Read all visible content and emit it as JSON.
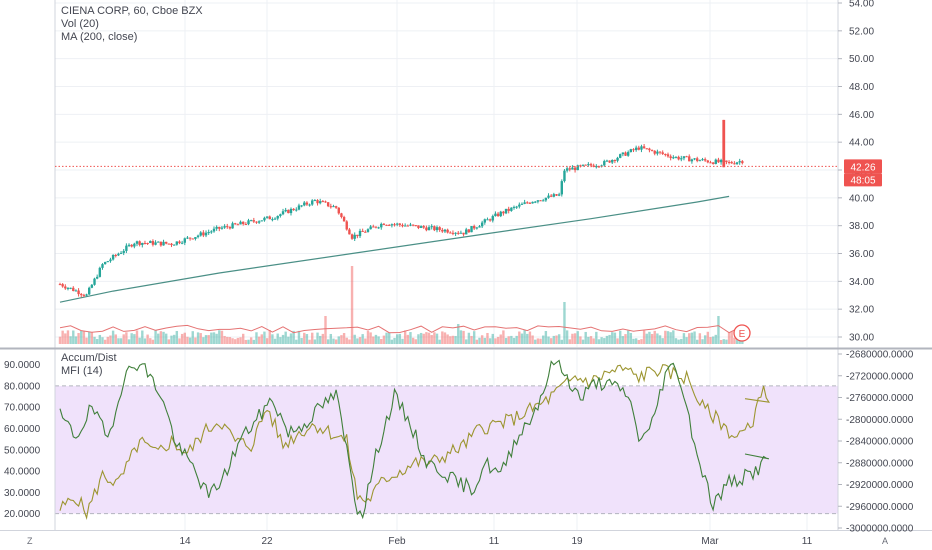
{
  "header": {
    "symbol_line": "CIENA CORP, 60, Cboe BZX",
    "vol_label": "Vol (20)",
    "ma_label": "MA (200, close)"
  },
  "lower_pane": {
    "accum_label": "Accum/Dist",
    "mfi_label": "MFI (14)"
  },
  "corners": {
    "left": "Z",
    "right": "A"
  },
  "earnings_badge": "E",
  "colors": {
    "up": "#26a69a",
    "down": "#ef5350",
    "ma": "#4a8f86",
    "ad_line": "#3f7f3a",
    "mfi_line": "#9c9530",
    "mfi_band": "#f0e2fb",
    "price_line": "#ef5350",
    "vol_ma": "#e57373"
  },
  "chart_data": [
    {
      "type": "candlestick",
      "title": "CIENA CORP, 60, Cboe BZX",
      "ylim": [
        29.5,
        54.0
      ],
      "y_ticks": [
        "30.00",
        "32.00",
        "34.00",
        "36.00",
        "38.00",
        "40.00",
        "42.00",
        "44.00",
        "46.00",
        "48.00",
        "50.00",
        "52.00",
        "54.00"
      ],
      "x_ticks": [
        "14",
        "22",
        "Feb",
        "11",
        "19",
        "Mar",
        "11"
      ],
      "price_path_anchors": [
        {
          "i": 0,
          "v": 33.8
        },
        {
          "i": 10,
          "v": 33.0
        },
        {
          "i": 16,
          "v": 35.2
        },
        {
          "i": 28,
          "v": 36.8
        },
        {
          "i": 42,
          "v": 36.7
        },
        {
          "i": 60,
          "v": 37.8
        },
        {
          "i": 80,
          "v": 38.6
        },
        {
          "i": 96,
          "v": 39.8
        },
        {
          "i": 104,
          "v": 39.3
        },
        {
          "i": 110,
          "v": 37.2
        },
        {
          "i": 122,
          "v": 38.2
        },
        {
          "i": 140,
          "v": 37.8
        },
        {
          "i": 152,
          "v": 37.5
        },
        {
          "i": 166,
          "v": 38.9
        },
        {
          "i": 178,
          "v": 39.8
        },
        {
          "i": 188,
          "v": 40.2
        },
        {
          "i": 190,
          "v": 42.0
        },
        {
          "i": 205,
          "v": 42.5
        },
        {
          "i": 218,
          "v": 43.6
        },
        {
          "i": 232,
          "v": 42.9
        },
        {
          "i": 246,
          "v": 42.6
        },
        {
          "i": 252,
          "v": 42.5
        },
        {
          "i": 258,
          "v": 42.7
        }
      ],
      "last_price": {
        "label": "42.26",
        "countdown": "48:05",
        "value": 42.26
      },
      "ma200": [
        [
          0,
          32.5
        ],
        [
          20,
          33.3
        ],
        [
          60,
          34.6
        ],
        [
          110,
          36.0
        ],
        [
          160,
          37.4
        ],
        [
          200,
          38.5
        ],
        [
          240,
          39.7
        ],
        [
          252,
          40.1
        ]
      ],
      "spike": {
        "i": 250,
        "high": 45.6,
        "low": 42.2
      },
      "volume_spikes": [
        {
          "i": 110,
          "h": 78
        },
        {
          "i": 190,
          "h": 42
        },
        {
          "i": 100,
          "h": 28
        },
        {
          "i": 248,
          "h": 28
        },
        {
          "i": 150,
          "h": 20
        }
      ],
      "bar_count": 258,
      "earnings_marker": "E"
    },
    {
      "type": "line",
      "series": [
        {
          "name": "Accum/Dist",
          "anchors": [
            [
              0,
              66
            ],
            [
              6,
              56
            ],
            [
              12,
              70
            ],
            [
              18,
              55
            ],
            [
              24,
              84
            ],
            [
              30,
              92
            ],
            [
              38,
              76
            ],
            [
              44,
              52
            ],
            [
              50,
              42
            ],
            [
              56,
              28
            ],
            [
              62,
              38
            ],
            [
              68,
              55
            ],
            [
              74,
              64
            ],
            [
              80,
              74
            ],
            [
              86,
              58
            ],
            [
              92,
              62
            ],
            [
              98,
              70
            ],
            [
              104,
              76
            ],
            [
              108,
              50
            ],
            [
              112,
              22
            ],
            [
              114,
              21
            ],
            [
              120,
              52
            ],
            [
              126,
              75
            ],
            [
              132,
              62
            ],
            [
              138,
              44
            ],
            [
              144,
              40
            ],
            [
              150,
              34
            ],
            [
              156,
              32
            ],
            [
              160,
              44
            ],
            [
              166,
              38
            ],
            [
              172,
              56
            ],
            [
              178,
              66
            ],
            [
              182,
              78
            ],
            [
              186,
              92
            ],
            [
              190,
              86
            ],
            [
              196,
              74
            ],
            [
              202,
              82
            ],
            [
              208,
              80
            ],
            [
              214,
              76
            ],
            [
              218,
              56
            ],
            [
              222,
              58
            ],
            [
              228,
              86
            ],
            [
              232,
              90
            ],
            [
              236,
              70
            ],
            [
              240,
              48
            ],
            [
              246,
              24
            ],
            [
              252,
              35
            ],
            [
              256,
              36
            ],
            [
              262,
              40
            ],
            [
              268,
              48
            ]
          ],
          "ylim": [
            -3000000,
            -2680000
          ]
        },
        {
          "name": "MFI (14)",
          "anchors": [
            [
              0,
              22
            ],
            [
              6,
              28
            ],
            [
              10,
              20
            ],
            [
              16,
              38
            ],
            [
              22,
              34
            ],
            [
              30,
              54
            ],
            [
              36,
              48
            ],
            [
              42,
              54
            ],
            [
              48,
              48
            ],
            [
              54,
              58
            ],
            [
              60,
              64
            ],
            [
              66,
              54
            ],
            [
              72,
              52
            ],
            [
              78,
              70
            ],
            [
              84,
              52
            ],
            [
              90,
              58
            ],
            [
              96,
              62
            ],
            [
              102,
              58
            ],
            [
              108,
              54
            ],
            [
              112,
              28
            ],
            [
              116,
              26
            ],
            [
              122,
              36
            ],
            [
              128,
              40
            ],
            [
              134,
              44
            ],
            [
              140,
              44
            ],
            [
              146,
              48
            ],
            [
              152,
              52
            ],
            [
              158,
              60
            ],
            [
              164,
              62
            ],
            [
              170,
              64
            ],
            [
              176,
              68
            ],
            [
              182,
              72
            ],
            [
              188,
              78
            ],
            [
              194,
              84
            ],
            [
              200,
              82
            ],
            [
              206,
              86
            ],
            [
              212,
              88
            ],
            [
              218,
              84
            ],
            [
              224,
              88
            ],
            [
              230,
              86
            ],
            [
              236,
              84
            ],
            [
              242,
              70
            ],
            [
              248,
              64
            ],
            [
              254,
              56
            ],
            [
              260,
              60
            ],
            [
              264,
              78
            ],
            [
              268,
              74
            ]
          ],
          "ylim": [
            15,
            95
          ]
        }
      ],
      "y_ticks_left": [
        "20.0000",
        "30.0000",
        "40.0000",
        "50.0000",
        "60.0000",
        "70.0000",
        "80.0000",
        "90.0000"
      ],
      "y_ticks_right": [
        "-3000000.0000",
        "-2960000.0000",
        "-2920000.0000",
        "-2880000.0000",
        "-2840000.0000",
        "-2800000.0000",
        "-2760000.0000",
        "-2720000.0000",
        "-2680000.0000"
      ],
      "band": [
        20,
        80
      ]
    }
  ]
}
